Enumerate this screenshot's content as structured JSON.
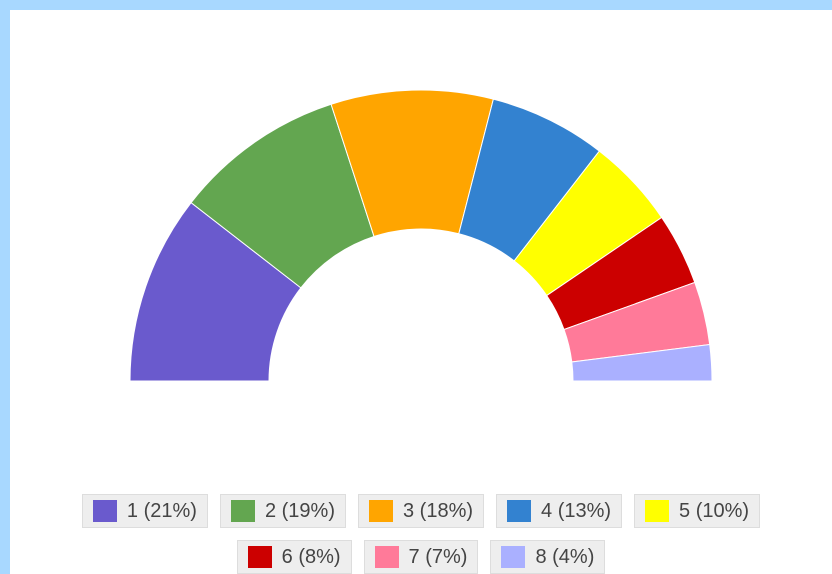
{
  "chart_data": {
    "type": "pie",
    "variant": "semicircle-donut",
    "categories": [
      "1",
      "2",
      "3",
      "4",
      "5",
      "6",
      "7",
      "8"
    ],
    "values": [
      21,
      19,
      18,
      13,
      10,
      8,
      7,
      4
    ],
    "legend_labels": [
      "1 (21%)",
      "2 (19%)",
      "3 (18%)",
      "4 (13%)",
      "5 (10%)",
      "6 (8%)",
      "7 (7%)",
      "8 (4%)"
    ],
    "colors": [
      "#6a5acd",
      "#63a650",
      "#ffa500",
      "#3382d0",
      "#ffff00",
      "#cc0000",
      "#ff7a99",
      "#aab0ff"
    ],
    "title": "",
    "legend_position": "bottom"
  }
}
